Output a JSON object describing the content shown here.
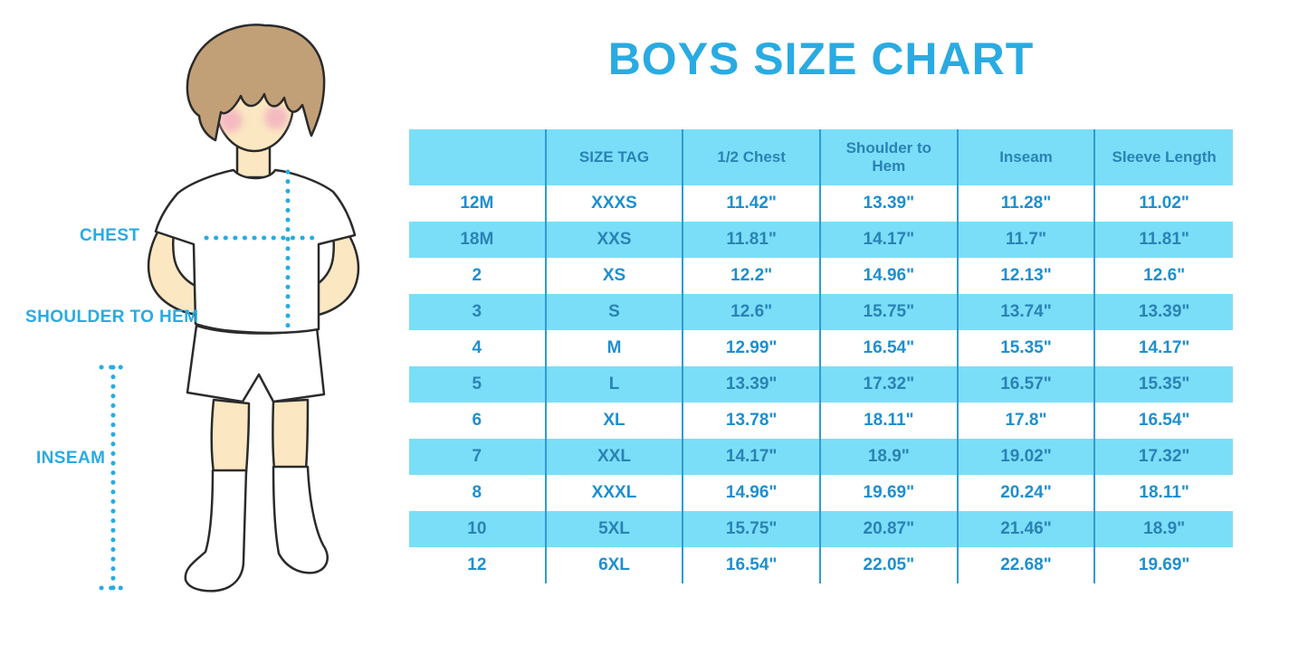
{
  "title": "BOYS SIZE CHART",
  "figure_labels": {
    "chest": "CHEST",
    "shoulder_to_hem": "SHOULDER TO HEM",
    "inseam": "INSEAM"
  },
  "colors": {
    "accent": "#29ABE2",
    "row_blue": "#7BDEF8",
    "divider": "#2E9BD6",
    "text_on_white": "#1D8FD0",
    "text_on_blue": "#2A82B5",
    "skin": "#FBE7C2",
    "hair": "#C2A077",
    "cheek": "#F2AFC1"
  },
  "chart_data": {
    "type": "table",
    "title": "BOYS SIZE CHART",
    "columns": [
      "",
      "SIZE TAG",
      "1/2 Chest",
      "Shoulder to Hem",
      "Inseam",
      "Sleeve Length"
    ],
    "rows": [
      [
        "12M",
        "XXXS",
        "11.42\"",
        "13.39\"",
        "11.28\"",
        "11.02\""
      ],
      [
        "18M",
        "XXS",
        "11.81\"",
        "14.17\"",
        "11.7\"",
        "11.81\""
      ],
      [
        "2",
        "XS",
        "12.2\"",
        "14.96\"",
        "12.13\"",
        "12.6\""
      ],
      [
        "3",
        "S",
        "12.6\"",
        "15.75\"",
        "13.74\"",
        "13.39\""
      ],
      [
        "4",
        "M",
        "12.99\"",
        "16.54\"",
        "15.35\"",
        "14.17\""
      ],
      [
        "5",
        "L",
        "13.39\"",
        "17.32\"",
        "16.57\"",
        "15.35\""
      ],
      [
        "6",
        "XL",
        "13.78\"",
        "18.11\"",
        "17.8\"",
        "16.54\""
      ],
      [
        "7",
        "XXL",
        "14.17\"",
        "18.9\"",
        "19.02\"",
        "17.32\""
      ],
      [
        "8",
        "XXXL",
        "14.96\"",
        "19.69\"",
        "20.24\"",
        "18.11\""
      ],
      [
        "10",
        "5XL",
        "15.75\"",
        "20.87\"",
        "21.46\"",
        "18.9\""
      ],
      [
        "12",
        "6XL",
        "16.54\"",
        "22.05\"",
        "22.68\"",
        "19.69\""
      ]
    ],
    "row_shading": "alternating white / light-blue, header light-blue",
    "grid": "vertical dividers only",
    "legend_position": "none"
  }
}
